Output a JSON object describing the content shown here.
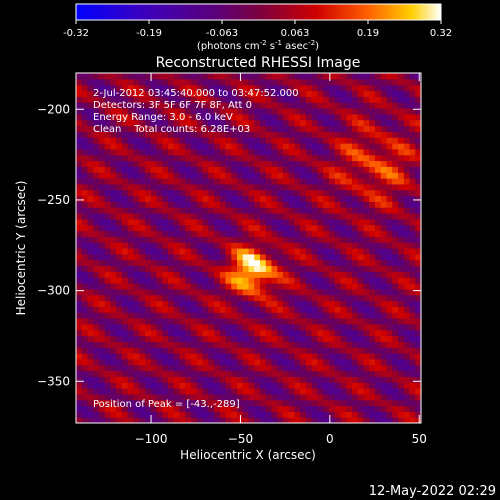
{
  "colorbar": {
    "ticks": [
      "-0.32",
      "-0.19",
      "-0.063",
      "0.063",
      "0.19",
      "0.32"
    ],
    "units_prefix": "(photons cm",
    "units_exp1": "-2",
    "units_mid": " s",
    "units_exp2": "-1",
    "units_mid2": " asec",
    "units_exp3": "-2",
    "units_suffix": ")"
  },
  "plot": {
    "title": "Reconstructed RHESSI Image",
    "info_lines": [
      " 2-Jul-2012 03:45:40.000 to 03:47:52.000",
      "Detectors: 3F 5F 6F 7F 8F, Att 0",
      "Energy Range: 3.0 - 6.0 keV",
      "Clean    Total counts: 6.28E+03"
    ],
    "peak_label": "Position of Peak = [-43.,-289]",
    "footer_date": "12-May-2022 02:29"
  },
  "chart_data": {
    "type": "heatmap",
    "title": "Reconstructed RHESSI Image",
    "xlabel": "Heliocentric X (arcsec)",
    "ylabel": "Heliocentric Y (arcsec)",
    "xlim": [
      -142,
      51
    ],
    "ylim": [
      -373,
      -180
    ],
    "x_ticks": [
      -100,
      -50,
      0,
      50
    ],
    "y_ticks": [
      -200,
      -250,
      -300,
      -350
    ],
    "colorbar_range": [
      -0.32,
      0.32
    ],
    "peak": {
      "x": -43,
      "y": -289,
      "value": 0.32
    },
    "secondary_source": {
      "x": 25,
      "y": -230,
      "value": 0.2
    },
    "colormap": "blue-purple-red-yellow-white"
  }
}
